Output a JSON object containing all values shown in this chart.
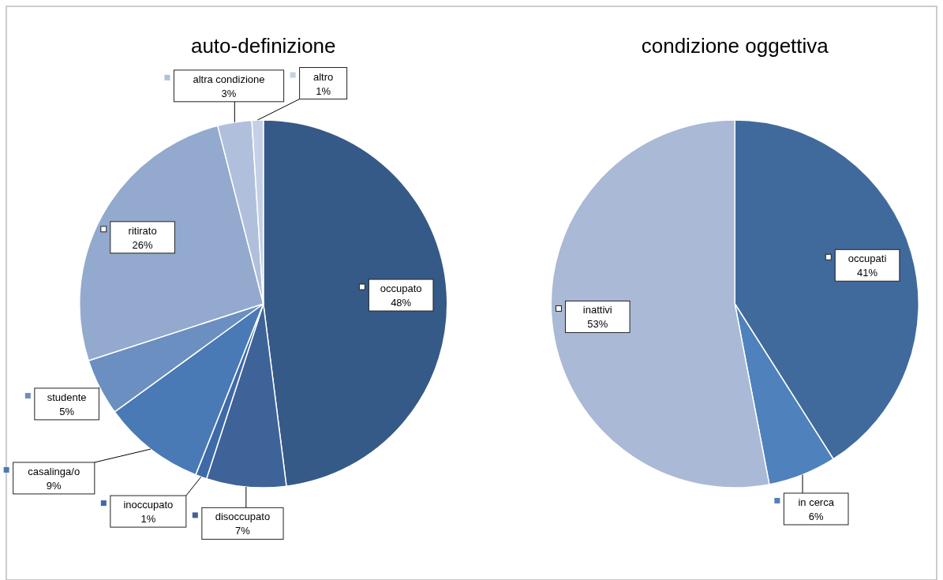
{
  "chart_data": [
    {
      "type": "pie",
      "title": "auto-definizione",
      "categories": [
        "occupato",
        "disoccupato",
        "inoccupato",
        "casalinga/o",
        "studente",
        "ritirato",
        "altra condizione",
        "altro"
      ],
      "values": [
        48,
        7,
        1,
        9,
        5,
        26,
        3,
        1
      ],
      "colors": [
        "#355a87",
        "#3d6399",
        "#3f6aa8",
        "#4a7ab5",
        "#6a8fc0",
        "#93a9ce",
        "#b0c0dc",
        "#c5d0e6"
      ],
      "value_labels": [
        "48%",
        "7%",
        "1%",
        "9%",
        "5%",
        "26%",
        "3%",
        "1%"
      ],
      "legend": "left"
    },
    {
      "type": "pie",
      "title": "condizione oggettiva",
      "categories": [
        "occupati",
        "in cerca",
        "inattivi"
      ],
      "values": [
        41,
        6,
        53
      ],
      "colors": [
        "#406a9c",
        "#4f81bd",
        "#a9b9d6"
      ],
      "value_labels": [
        "41%",
        "6%",
        "53%"
      ],
      "legend": "right"
    }
  ]
}
